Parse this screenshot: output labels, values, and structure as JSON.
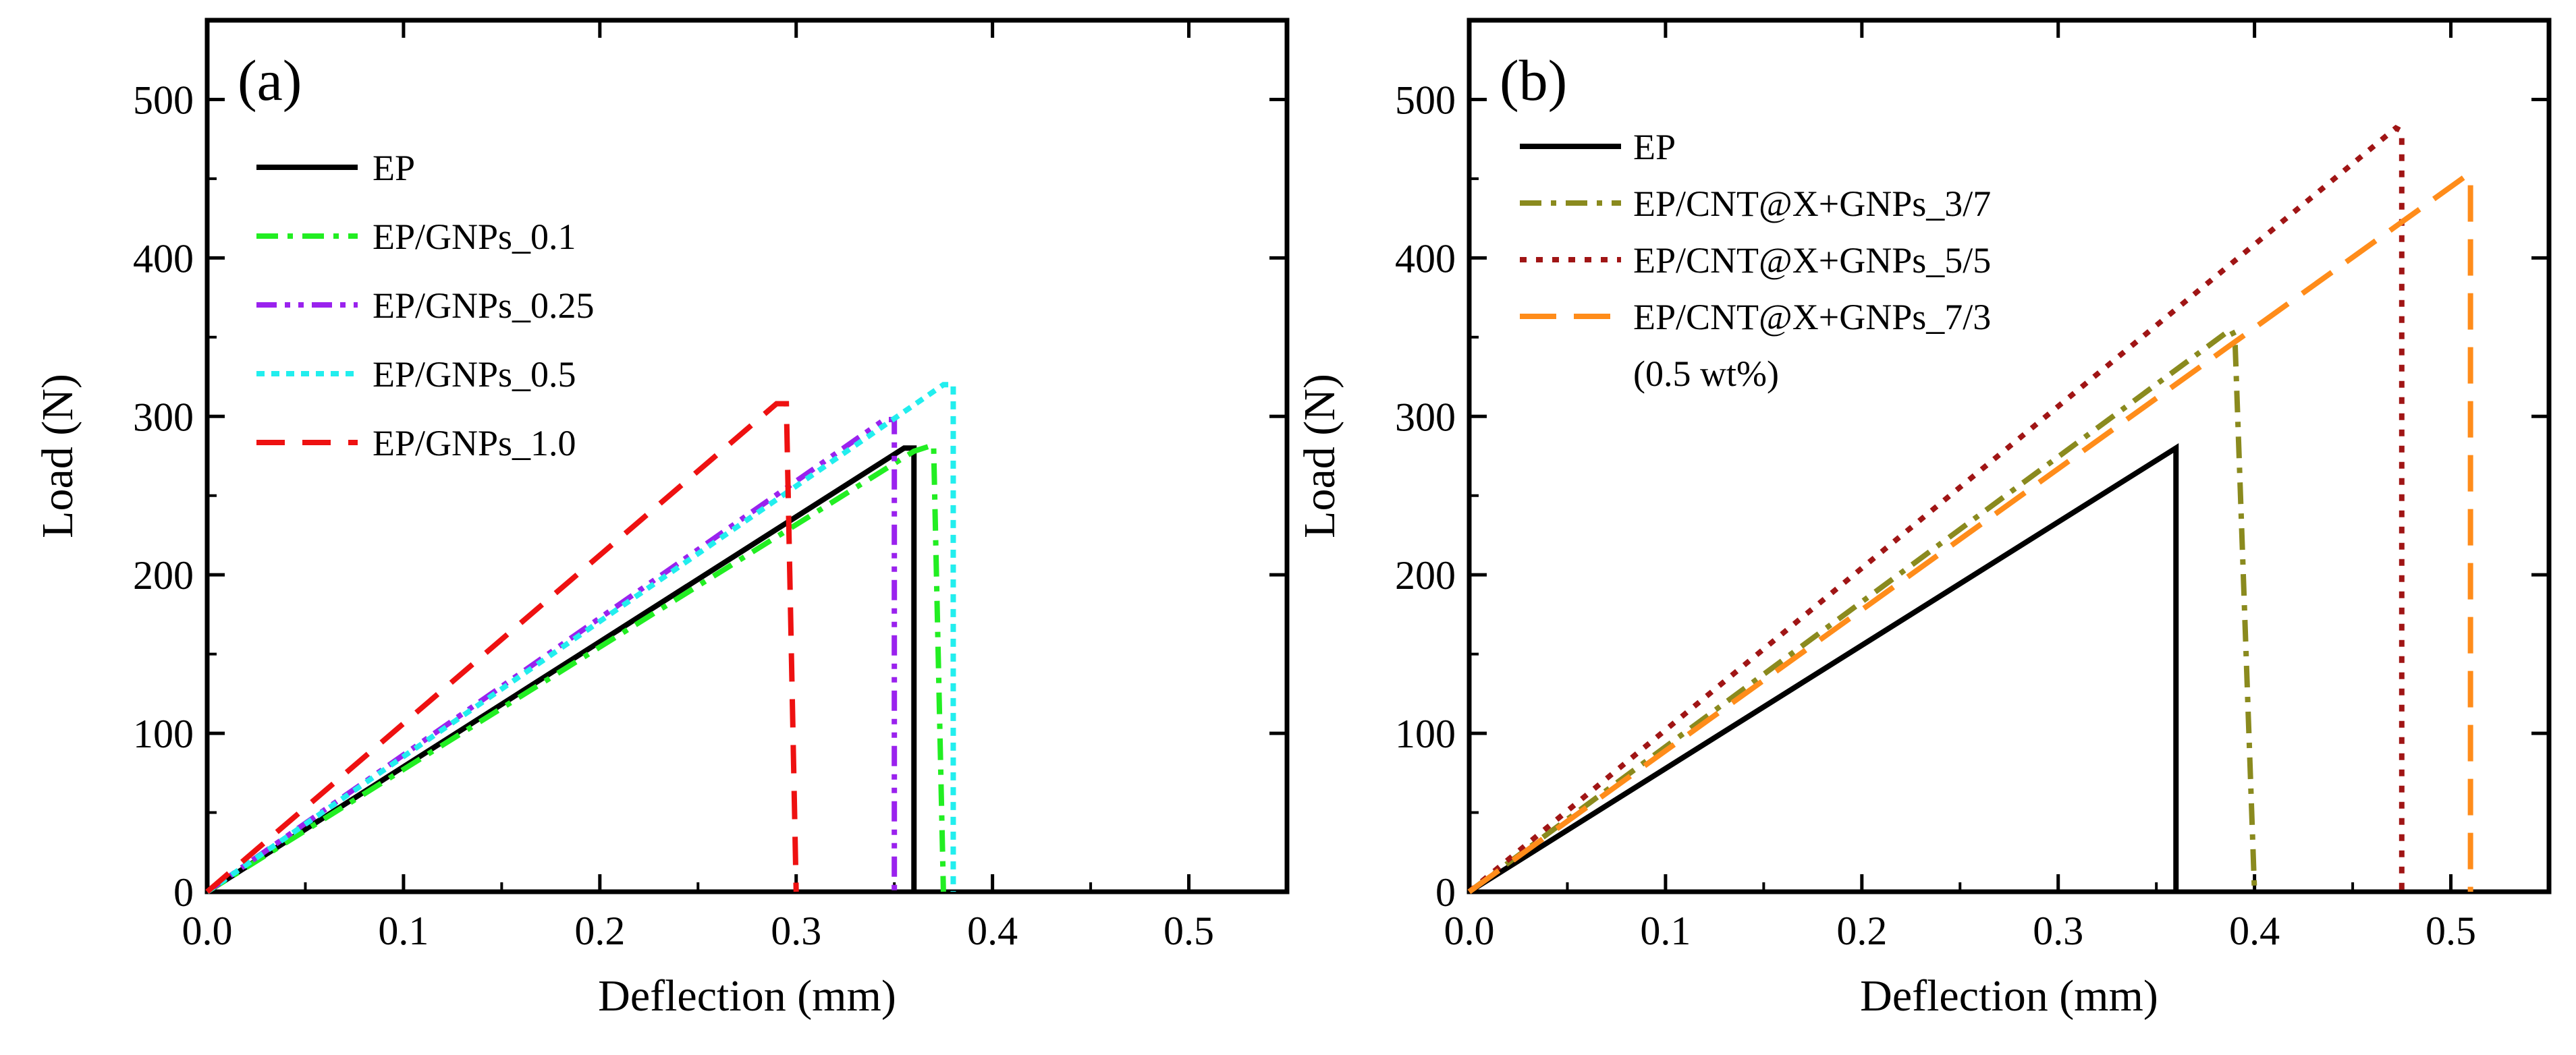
{
  "chart_data": [
    {
      "type": "line",
      "panel_label": "(a)",
      "xlabel": "Deflection (mm)",
      "ylabel": "Load (N)",
      "xlim": [
        0,
        0.55
      ],
      "ylim": [
        0,
        550
      ],
      "xticks": [
        0.0,
        0.1,
        0.2,
        0.3,
        0.4,
        0.5
      ],
      "xtick_labels": [
        "0.0",
        "0.1",
        "0.2",
        "0.3",
        "0.4",
        "0.5"
      ],
      "yticks": [
        0,
        100,
        200,
        300,
        400,
        500
      ],
      "ytick_labels": [
        "0",
        "100",
        "200",
        "300",
        "400",
        "500"
      ],
      "grid": false,
      "legend_position": "top-left",
      "legend_note": "",
      "series": [
        {
          "name": "EP",
          "color": "#000000",
          "dash": "solid",
          "x": [
            0,
            0.355,
            0.36,
            0.36
          ],
          "y": [
            0,
            280,
            280,
            0
          ]
        },
        {
          "name": "EP/GNPs_0.1",
          "color": "#22ee22",
          "dash": "dashdot",
          "x": [
            0,
            0.36,
            0.37,
            0.375
          ],
          "y": [
            0,
            278,
            282,
            0
          ]
        },
        {
          "name": "EP/GNPs_0.25",
          "color": "#9a22ee",
          "dash": "dashdotdot",
          "x": [
            0,
            0.345,
            0.35,
            0.35
          ],
          "y": [
            0,
            298,
            298,
            0
          ]
        },
        {
          "name": "EP/GNPs_0.5",
          "color": "#22eeee",
          "dash": "dot",
          "x": [
            0,
            0.375,
            0.38,
            0.38
          ],
          "y": [
            0,
            320,
            320,
            0
          ]
        },
        {
          "name": "EP/GNPs_1.0",
          "color": "#ee1111",
          "dash": "dash",
          "x": [
            0,
            0.29,
            0.295,
            0.3
          ],
          "y": [
            0,
            308,
            308,
            0
          ]
        }
      ]
    },
    {
      "type": "line",
      "panel_label": "(b)",
      "xlabel": "Deflection (mm)",
      "ylabel": "Load (N)",
      "xlim": [
        0,
        0.55
      ],
      "ylim": [
        0,
        550
      ],
      "xticks": [
        0.0,
        0.1,
        0.2,
        0.3,
        0.4,
        0.5
      ],
      "xtick_labels": [
        "0.0",
        "0.1",
        "0.2",
        "0.3",
        "0.4",
        "0.5"
      ],
      "yticks": [
        0,
        100,
        200,
        300,
        400,
        500
      ],
      "ytick_labels": [
        "0",
        "100",
        "200",
        "300",
        "400",
        "500"
      ],
      "grid": false,
      "legend_position": "top-left",
      "legend_note": "(0.5 wt%)",
      "series": [
        {
          "name": "EP",
          "color": "#000000",
          "dash": "solid",
          "x": [
            0,
            0.36,
            0.36
          ],
          "y": [
            0,
            280,
            0
          ]
        },
        {
          "name": "EP/CNT@X+GNPs_3/7",
          "color": "#8a8a1e",
          "dash": "dashdot",
          "x": [
            0,
            0.388,
            0.39,
            0.4
          ],
          "y": [
            0,
            355,
            350,
            0
          ]
        },
        {
          "name": "EP/CNT@X+GNPs_5/5",
          "color": "#a01515",
          "dash": "dotdot",
          "x": [
            0,
            0.472,
            0.475,
            0.475
          ],
          "y": [
            0,
            482,
            480,
            0
          ]
        },
        {
          "name": "EP/CNT@X+GNPs_7/3",
          "color": "#ff8c1a",
          "dash": "longdash",
          "x": [
            0,
            0.508,
            0.51,
            0.51
          ],
          "y": [
            0,
            452,
            452,
            0
          ]
        }
      ]
    }
  ]
}
